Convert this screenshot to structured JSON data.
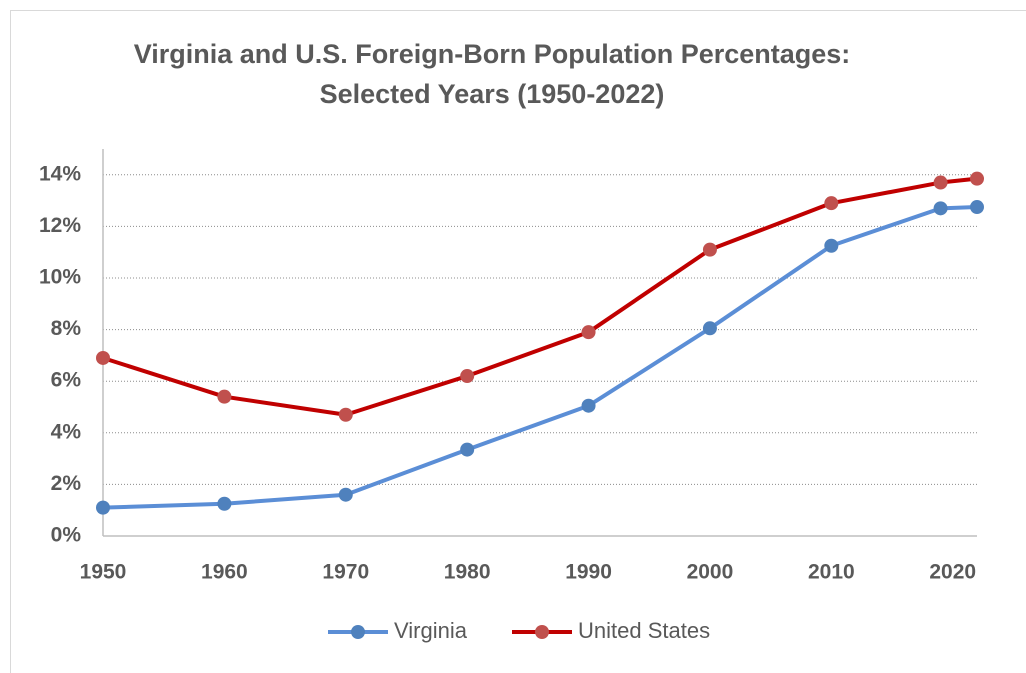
{
  "chart_data": {
    "type": "line",
    "title": [
      "Virginia and U.S. Foreign-Born Population Percentages:",
      "Selected Years (1950-2022)"
    ],
    "x": [
      1950,
      1960,
      1970,
      1980,
      1990,
      2000,
      2010,
      2019,
      2022
    ],
    "series": [
      {
        "name": "Virginia",
        "color": "#5b8ed6",
        "marker_color": "#4f81bd",
        "values": [
          1.1,
          1.25,
          1.6,
          3.35,
          5.05,
          8.05,
          11.25,
          12.7,
          12.75
        ]
      },
      {
        "name": "United States",
        "color": "#c00000",
        "marker_color": "#c0504d",
        "values": [
          6.9,
          5.4,
          4.7,
          6.2,
          7.9,
          11.1,
          12.9,
          13.7,
          13.85
        ]
      }
    ],
    "xlim": [
      1950,
      2022
    ],
    "xticks": [
      1950,
      1960,
      1970,
      1980,
      1990,
      2000,
      2010,
      2020
    ],
    "ylim": [
      0,
      15
    ],
    "yticks": [
      {
        "value": 0,
        "label": "0%"
      },
      {
        "value": 2,
        "label": "2%"
      },
      {
        "value": 4,
        "label": "4%"
      },
      {
        "value": 6,
        "label": "6%"
      },
      {
        "value": 8,
        "label": "8%"
      },
      {
        "value": 10,
        "label": "10%"
      },
      {
        "value": 12,
        "label": "12%"
      },
      {
        "value": 14,
        "label": "14%"
      }
    ],
    "grid": true,
    "legend": "bottom"
  }
}
